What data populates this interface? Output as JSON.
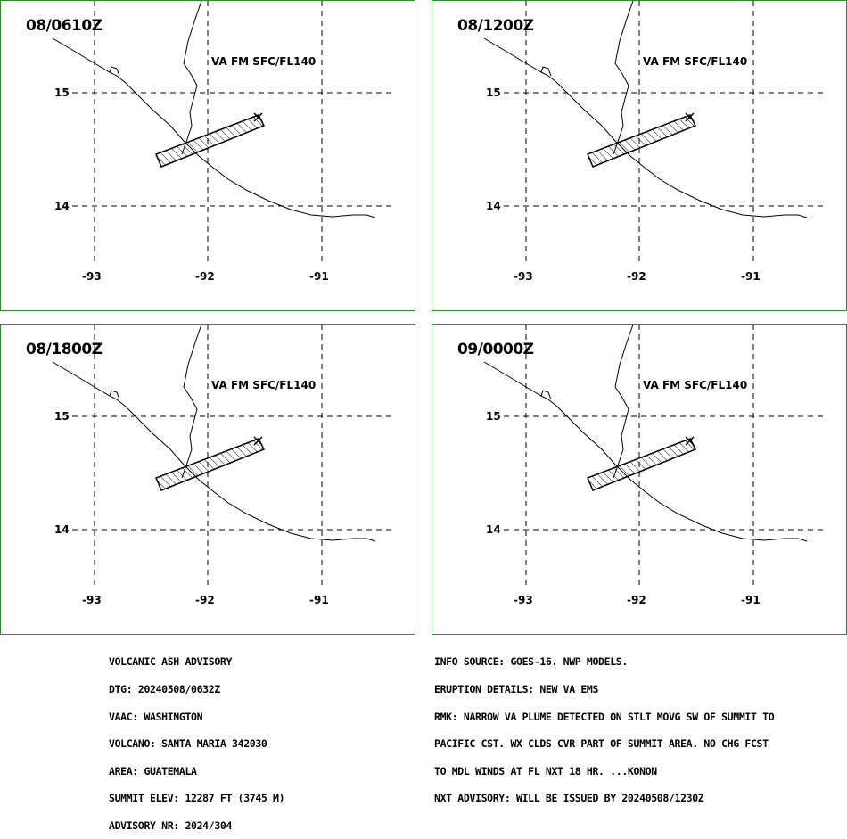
{
  "panels": [
    {
      "time": "08/0610Z",
      "label": "VA FM SFC/FL140",
      "lat_ticks": [
        "15",
        "14"
      ],
      "lon_ticks": [
        "-93",
        "-92",
        "-91"
      ]
    },
    {
      "time": "08/1200Z",
      "label": "VA FM SFC/FL140",
      "lat_ticks": [
        "15",
        "14"
      ],
      "lon_ticks": [
        "-93",
        "-92",
        "-91"
      ]
    },
    {
      "time": "08/1800Z",
      "label": "VA FM SFC/FL140",
      "lat_ticks": [
        "15",
        "14"
      ],
      "lon_ticks": [
        "-93",
        "-92",
        "-91"
      ]
    },
    {
      "time": "09/0000Z",
      "label": "VA FM SFC/FL140",
      "lat_ticks": [
        "15",
        "14"
      ],
      "lon_ticks": [
        "-93",
        "-92",
        "-91"
      ]
    }
  ],
  "advisory_left": [
    "VOLCANIC ASH ADVISORY",
    "DTG: 20240508/0632Z",
    "VAAC: WASHINGTON",
    "VOLCANO: SANTA MARIA 342030",
    "AREA: GUATEMALA",
    "SUMMIT ELEV: 12287 FT (3745 M)",
    "ADVISORY NR: 2024/304"
  ],
  "advisory_right": [
    "INFO SOURCE: GOES-16. NWP MODELS.",
    "ERUPTION DETAILS: NEW VA EMS",
    "RMK: NARROW VA PLUME DETECTED ON STLT MOVG SW OF SUMMIT TO",
    "PACIFIC CST. WX CLDS CVR PART OF SUMMIT AREA. NO CHG FCST",
    "TO MDL WINDS AT FL NXT 18 HR. ...KONON",
    "NXT ADVISORY: WILL BE ISSUED BY 20240508/1230Z"
  ],
  "colors": {
    "panel_border": "#2e8b2e",
    "lines": "#000000",
    "background": "#ffffff"
  },
  "map_features": [
    "coastline",
    "border",
    "ash-polygon",
    "volcano-marker"
  ]
}
